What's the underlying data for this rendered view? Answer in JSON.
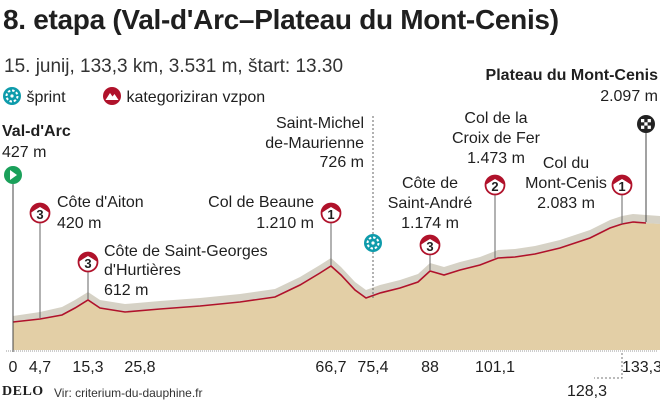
{
  "header": {
    "title": "8. etapa (Val-d'Arc–Plateau du Mont-Cenis)",
    "subtitle": "15. junij, 133,3 km, 3.531 m, štart: 13.30"
  },
  "legend": {
    "sprint": "šprint",
    "climb": "kategoriziran vzpon"
  },
  "colors": {
    "terrain_fill": "#e3cfa6",
    "terrain_top": "#8e8e86",
    "profile_line": "#b0122b",
    "start_flag": "#1aa05a",
    "sprint": "#0e9bab",
    "climb_marker": "#b0122b"
  },
  "start": {
    "name": "Val-d'Arc",
    "elevation": "427 m"
  },
  "finish": {
    "name": "Plateau du Mont-Cenis",
    "elevation": "2.097 m"
  },
  "sprint_point": {
    "name": "Saint-Michel de-Maurienne",
    "line1": "Saint-Michel",
    "line2": "de-Maurienne",
    "elevation": "726 m"
  },
  "climbs": [
    {
      "category": "3",
      "line1": "Côte d'Aiton",
      "line2": "",
      "elevation": "420 m"
    },
    {
      "category": "3",
      "line1": "Côte de Saint-Georges",
      "line2": "d'Hurtières",
      "elevation": "612 m"
    },
    {
      "category": "1",
      "line1": "Col de Beaune",
      "line2": "",
      "elevation": "1.210 m"
    },
    {
      "category": "3",
      "line1": "Côte de",
      "line2": "Saint-André",
      "elevation": "1.174 m"
    },
    {
      "category": "2",
      "line1": "Col de la",
      "line2": "Croix de Fer",
      "elevation": "1.473 m"
    },
    {
      "category": "1",
      "line1": "Col du",
      "line2": "Mont-Cenis",
      "elevation": "2.083 m"
    }
  ],
  "axis": {
    "ticks": [
      "0",
      "4,7",
      "15,3",
      "25,8",
      "66,7",
      "75,4",
      "88",
      "101,1",
      "133,3"
    ],
    "extra_tick": "128,3"
  },
  "footer": {
    "logo": "DELO",
    "source": "Vir: criterium-du-dauphine.fr"
  }
}
